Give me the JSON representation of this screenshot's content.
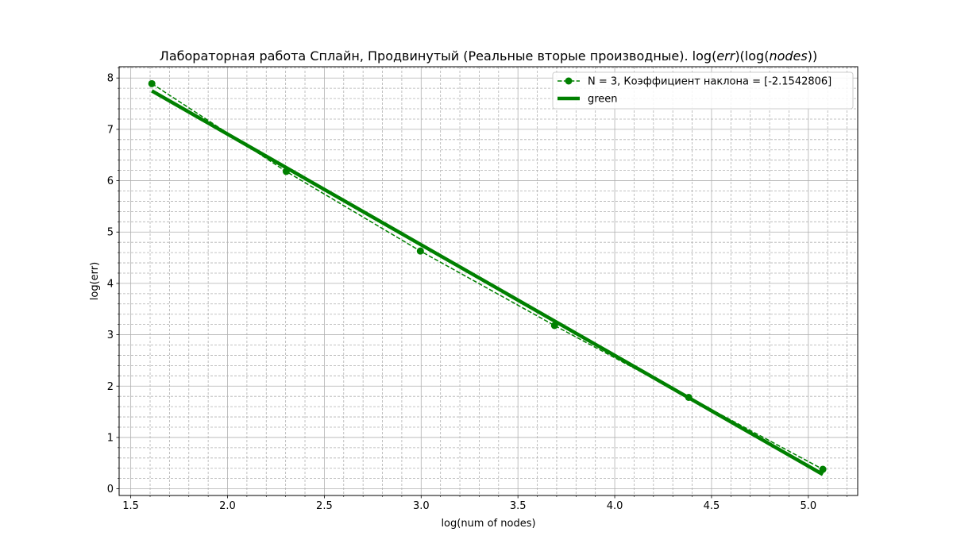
{
  "chart_data": {
    "type": "line",
    "title_prefix": "Лабораторная работа Сплайн, Продвинутый (Реальные вторые производные). log(",
    "title_err": "err",
    "title_mid": ")(log(",
    "title_nodes": "nodes",
    "title_suffix": "))",
    "xlabel": "log(num of nodes)",
    "ylabel": "log(err)",
    "xlim": [
      1.44,
      5.255
    ],
    "ylim": [
      -0.13,
      8.22
    ],
    "xticks": [
      1.5,
      2.0,
      2.5,
      3.0,
      3.5,
      4.0,
      4.5,
      5.0
    ],
    "xtick_labels": [
      "1.5",
      "2.0",
      "2.5",
      "3.0",
      "3.5",
      "4.0",
      "4.5",
      "5.0"
    ],
    "yticks": [
      0,
      1,
      2,
      3,
      4,
      5,
      6,
      7,
      8
    ],
    "ytick_labels": [
      "0",
      "1",
      "2",
      "3",
      "4",
      "5",
      "6",
      "7",
      "8"
    ],
    "x_minor_step": 0.1,
    "y_minor_step": 0.2,
    "grid": true,
    "legend_position": "upper right",
    "series": [
      {
        "name": "N = 3, Коэффициент наклона = [-2.1542806]",
        "style": "dashed-markers",
        "color": "#008000",
        "x": [
          1.609,
          2.303,
          2.996,
          3.689,
          4.382,
          5.075
        ],
        "y": [
          7.89,
          6.18,
          4.63,
          3.18,
          1.78,
          0.38
        ]
      },
      {
        "name": "green",
        "style": "thick-solid",
        "color": "#008000",
        "x": [
          1.609,
          5.075
        ],
        "y": [
          7.75,
          0.28
        ]
      }
    ]
  }
}
